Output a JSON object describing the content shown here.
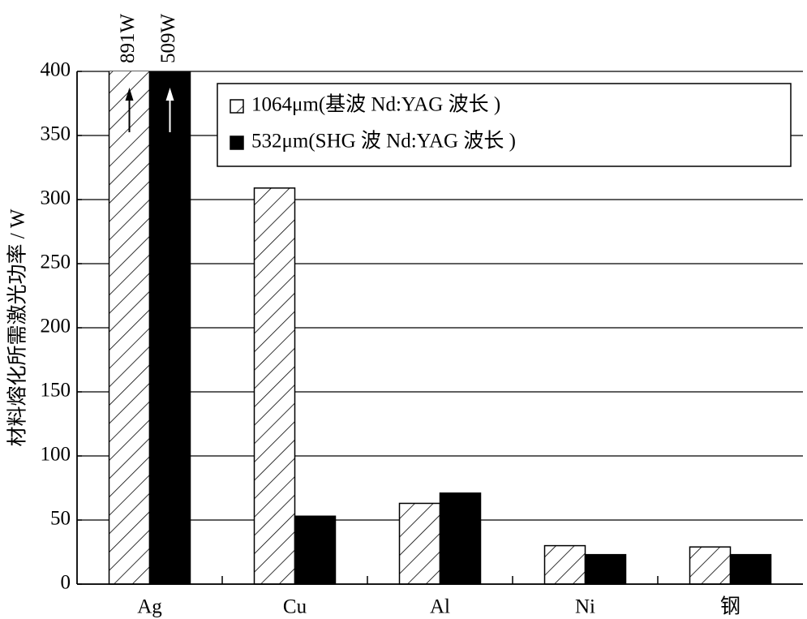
{
  "chart_data": {
    "type": "bar",
    "y_label": "材料熔化所需激光功率 / W",
    "categories": [
      "Ag",
      "Cu",
      "Al",
      "Ni",
      "钢"
    ],
    "series": [
      {
        "name": "1064μm(基波 Nd:YAG 波长 )",
        "color": "#000000",
        "hatch": true,
        "values": [
          891,
          309,
          63,
          30,
          29
        ],
        "value_labels": [
          "891W",
          null,
          null,
          null,
          null
        ]
      },
      {
        "name": "532μm(SHG 波 Nd:YAG 波长 )",
        "color": "#000000",
        "hatch": false,
        "values": [
          509,
          53,
          71,
          23,
          23
        ],
        "value_labels": [
          "509W",
          null,
          null,
          null,
          null
        ]
      }
    ],
    "ylim": [
      0,
      400
    ],
    "yticks": [
      0,
      50,
      100,
      150,
      200,
      250,
      300,
      350,
      400
    ],
    "grid": true,
    "legend": "upper right"
  }
}
